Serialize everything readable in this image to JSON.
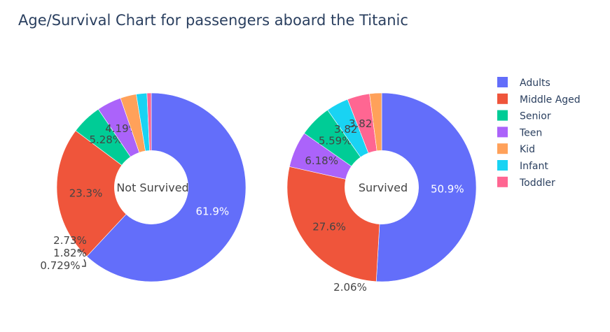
{
  "chart_data": {
    "type": "pie",
    "title": "Age/Survival Chart for passengers aboard the Titanic",
    "legend_position": "right",
    "categories": [
      "Adults",
      "Middle Aged",
      "Senior",
      "Teen",
      "Kid",
      "Infant",
      "Toddler"
    ],
    "colors": {
      "Adults": "#636efa",
      "Middle Aged": "#EF553B",
      "Senior": "#00cc96",
      "Teen": "#ab63fa",
      "Kid": "#FFA15A",
      "Infant": "#19d3f3",
      "Toddler": "#FF6692"
    },
    "pies": [
      {
        "name": "Not Survived",
        "slices": [
          {
            "label": "Adults",
            "value": 61.9,
            "text": "61.9%"
          },
          {
            "label": "Middle Aged",
            "value": 23.3,
            "text": "23.3%"
          },
          {
            "label": "Senior",
            "value": 5.28,
            "text": "5.28%"
          },
          {
            "label": "Teen",
            "value": 4.19,
            "text": "4.19%"
          },
          {
            "label": "Kid",
            "value": 2.73,
            "text": "2.73%"
          },
          {
            "label": "Infant",
            "value": 1.82,
            "text": "1.82%"
          },
          {
            "label": "Toddler",
            "value": 0.729,
            "text": "0.729%"
          }
        ]
      },
      {
        "name": "Survived",
        "slices": [
          {
            "label": "Adults",
            "value": 50.9,
            "text": "50.9%"
          },
          {
            "label": "Middle Aged",
            "value": 27.6,
            "text": "27.6%"
          },
          {
            "label": "Teen",
            "value": 6.18,
            "text": "6.18%"
          },
          {
            "label": "Senior",
            "value": 5.59,
            "text": "5.59%"
          },
          {
            "label": "Infant",
            "value": 3.82,
            "text": "3.82%"
          },
          {
            "label": "Toddler",
            "value": 3.82,
            "text": "3.82%"
          },
          {
            "label": "Kid",
            "value": 2.06,
            "text": "2.06%"
          }
        ]
      }
    ]
  }
}
